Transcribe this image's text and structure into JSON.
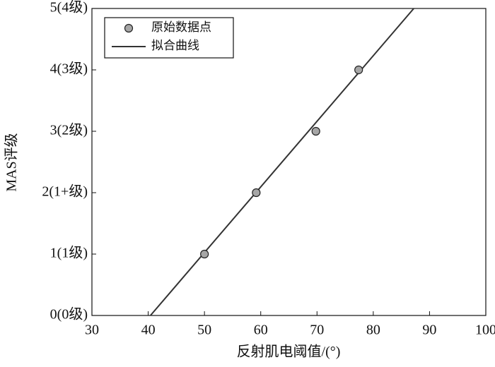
{
  "chart_data": {
    "type": "scatter",
    "x_label": "反射肌电阈值/(°)",
    "y_label": "MAS评级",
    "xlim": [
      30,
      100
    ],
    "xticks": [
      30,
      40,
      50,
      60,
      70,
      80,
      90,
      100
    ],
    "ylim": [
      0,
      5
    ],
    "yticks": [
      {
        "value": 0,
        "label": "0(0级)"
      },
      {
        "value": 1,
        "label": "1(1级)"
      },
      {
        "value": 2,
        "label": "2(1+级)"
      },
      {
        "value": 3,
        "label": "3(2级)"
      },
      {
        "value": 4,
        "label": "4(3级)"
      },
      {
        "value": 5,
        "label": "5(4级)"
      }
    ],
    "legend": "upper left",
    "series": [
      {
        "name": "原始数据点",
        "type": "scatter",
        "color": "#a6a6a6",
        "x": [
          50,
          59.2,
          69.8,
          77.4
        ],
        "values": [
          1,
          2,
          3,
          4
        ]
      },
      {
        "name": "拟合曲线",
        "type": "line",
        "color": "#333333",
        "x": [
          40.4,
          87.2
        ],
        "values": [
          0,
          5
        ]
      }
    ]
  }
}
